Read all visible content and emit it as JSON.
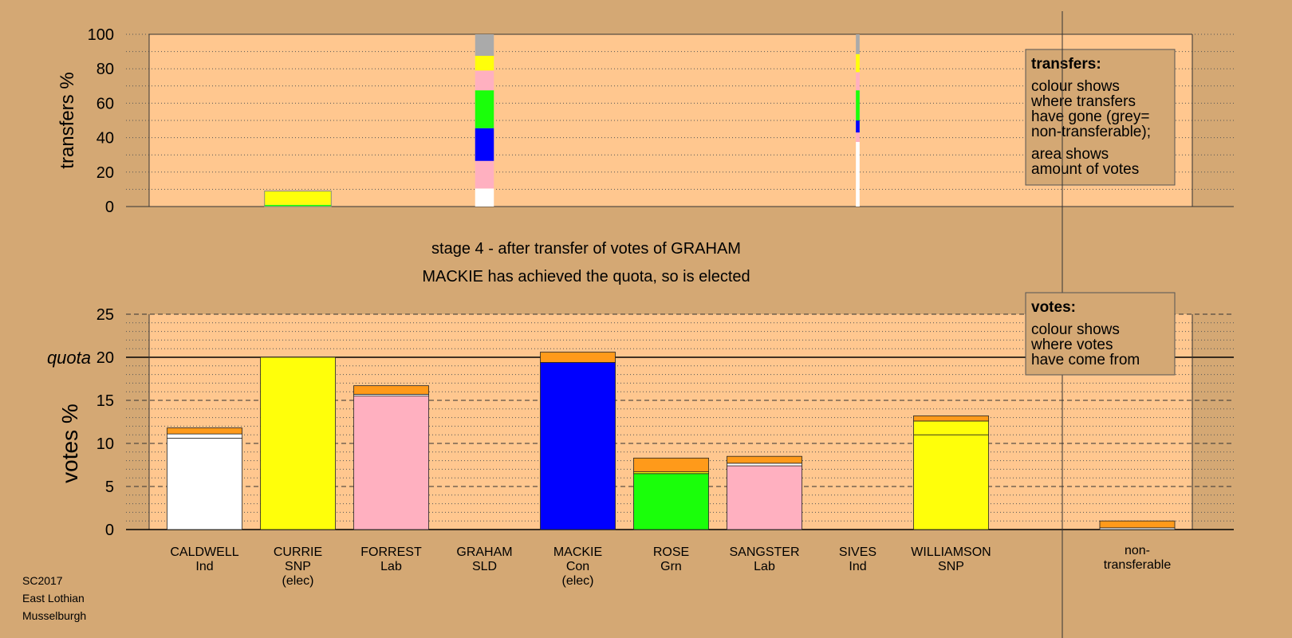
{
  "colors": {
    "background": "#d4a874",
    "plot_area": "#ffc78f",
    "caldwell": "#ffffff",
    "currie": "#ffff0a",
    "forrest": "#ffb0c0",
    "graham": "#ff9a1a",
    "mackie": "#0000ff",
    "rose": "#1aff0a",
    "sangster": "#ffb0c0",
    "sives": "#ffffff",
    "williamson": "#ffff0a",
    "nontransferable": "#aaaaaa"
  },
  "footer": {
    "line1": "SC2017",
    "line2": "East Lothian",
    "line3": "Musselburgh"
  },
  "chart_data": {
    "type": "bar",
    "stage_title": "stage 4 - after transfer of votes of GRAHAM",
    "stage_subtitle": "MACKIE has achieved the quota, so is elected",
    "quota_label": "quota",
    "quota": 20,
    "categories": [
      {
        "name": "CALDWELL",
        "party": "Ind",
        "note": ""
      },
      {
        "name": "CURRIE",
        "party": "SNP",
        "note": "(elec)"
      },
      {
        "name": "FORREST",
        "party": "Lab",
        "note": ""
      },
      {
        "name": "GRAHAM",
        "party": "SLD",
        "note": ""
      },
      {
        "name": "MACKIE",
        "party": "Con",
        "note": "(elec)"
      },
      {
        "name": "ROSE",
        "party": "Grn",
        "note": ""
      },
      {
        "name": "SANGSTER",
        "party": "Lab",
        "note": ""
      },
      {
        "name": "SIVES",
        "party": "Ind",
        "note": ""
      },
      {
        "name": "WILLIAMSON",
        "party": "SNP",
        "note": ""
      },
      {
        "name": "non-",
        "party": "transferable",
        "note": ""
      }
    ],
    "transfers": {
      "ylabel": "transfers %",
      "ylim": [
        0,
        100
      ],
      "yticks": [
        0,
        20,
        40,
        60,
        80,
        100
      ],
      "legend_title": "transfers:",
      "legend_lines": [
        "colour shows",
        "where transfers",
        "have gone (grey=",
        "non-transferable);",
        "area shows",
        "amount of votes"
      ],
      "columns": [
        {
          "candidate": "CURRIE",
          "width_fraction": 0.9,
          "segments": [
            {
              "to": "rose",
              "from": 0,
              "to_pct": 1
            },
            {
              "to": "williamson",
              "from": 1,
              "to_pct": 2
            },
            {
              "to": "currie",
              "from": 2,
              "to_pct": 9
            }
          ]
        },
        {
          "candidate": "GRAHAM",
          "width_fraction": 0.25,
          "segments": [
            {
              "to": "caldwell",
              "from": 0,
              "to_pct": 10.5
            },
            {
              "to": "forrest",
              "from": 10.5,
              "to_pct": 26.5
            },
            {
              "to": "mackie",
              "from": 26.5,
              "to_pct": 45.5
            },
            {
              "to": "rose",
              "from": 45.5,
              "to_pct": 67.5
            },
            {
              "to": "sangster",
              "from": 67.5,
              "to_pct": 79
            },
            {
              "to": "williamson",
              "from": 79,
              "to_pct": 87.5
            },
            {
              "to": "nontransferable",
              "from": 87.5,
              "to_pct": 100
            }
          ]
        },
        {
          "candidate": "SIVES",
          "width_fraction": 0.05,
          "segments": [
            {
              "to": "caldwell",
              "from": 0,
              "to_pct": 37.5
            },
            {
              "to": "forrest",
              "from": 37.5,
              "to_pct": 43
            },
            {
              "to": "mackie",
              "from": 43,
              "to_pct": 50
            },
            {
              "to": "rose",
              "from": 50,
              "to_pct": 67.5
            },
            {
              "to": "sangster",
              "from": 67.5,
              "to_pct": 78
            },
            {
              "to": "williamson",
              "from": 78,
              "to_pct": 88.5
            },
            {
              "to": "nontransferable",
              "from": 88.5,
              "to_pct": 100
            }
          ]
        }
      ]
    },
    "votes": {
      "ylabel": "votes %",
      "ylim": [
        0,
        25
      ],
      "yticks": [
        0,
        5,
        10,
        15,
        20,
        25
      ],
      "legend_title": "votes:",
      "legend_lines": [
        "colour shows",
        "where votes",
        "have come from"
      ],
      "bars": [
        {
          "candidate": "CALDWELL",
          "segments": [
            {
              "from_cand": "caldwell",
              "value": 10.6
            },
            {
              "from_cand": "sives",
              "value": 0.5
            },
            {
              "from_cand": "graham",
              "value": 0.7
            }
          ]
        },
        {
          "candidate": "CURRIE",
          "segments": [
            {
              "from_cand": "currie",
              "value": 20.0
            }
          ]
        },
        {
          "candidate": "FORREST",
          "segments": [
            {
              "from_cand": "forrest",
              "value": 15.5
            },
            {
              "from_cand": "sives",
              "value": 0.2
            },
            {
              "from_cand": "graham",
              "value": 1.0
            }
          ]
        },
        {
          "candidate": "GRAHAM",
          "segments": []
        },
        {
          "candidate": "MACKIE",
          "segments": [
            {
              "from_cand": "mackie",
              "value": 19.4
            },
            {
              "from_cand": "graham",
              "value": 1.2
            }
          ]
        },
        {
          "candidate": "ROSE",
          "segments": [
            {
              "from_cand": "rose",
              "value": 6.5
            },
            {
              "from_cand": "currie",
              "value": 0.2
            },
            {
              "from_cand": "graham",
              "value": 1.6
            }
          ]
        },
        {
          "candidate": "SANGSTER",
          "segments": [
            {
              "from_cand": "sangster",
              "value": 7.4
            },
            {
              "from_cand": "sives",
              "value": 0.3
            },
            {
              "from_cand": "graham",
              "value": 0.8
            }
          ]
        },
        {
          "candidate": "SIVES",
          "segments": []
        },
        {
          "candidate": "WILLIAMSON",
          "segments": [
            {
              "from_cand": "williamson",
              "value": 11.0
            },
            {
              "from_cand": "currie",
              "value": 1.6
            },
            {
              "from_cand": "graham",
              "value": 0.6
            }
          ]
        },
        {
          "candidate": "non-transferable",
          "segments": [
            {
              "from_cand": "sives",
              "value": 0.2
            },
            {
              "from_cand": "graham",
              "value": 0.8
            }
          ]
        }
      ]
    }
  }
}
